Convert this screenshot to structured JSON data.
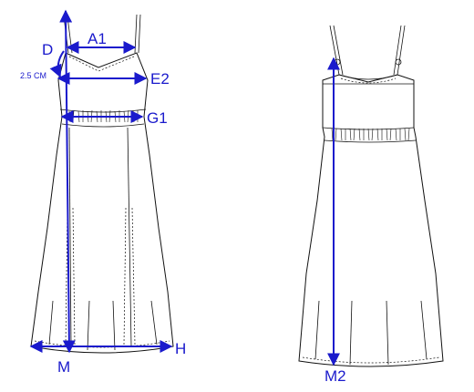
{
  "diagram": {
    "front_labels": {
      "A1": "A1",
      "D": "D",
      "offset_note": "2.5 CM",
      "E2": "E2",
      "G1": "G1",
      "H": "H",
      "M": "M"
    },
    "back_labels": {
      "M2": "M2"
    },
    "colors": {
      "measure_line": "#1a1acc",
      "garment_outline": "#111111",
      "background": "#ffffff"
    },
    "icons": [
      "measurement-arrow-icon"
    ]
  }
}
